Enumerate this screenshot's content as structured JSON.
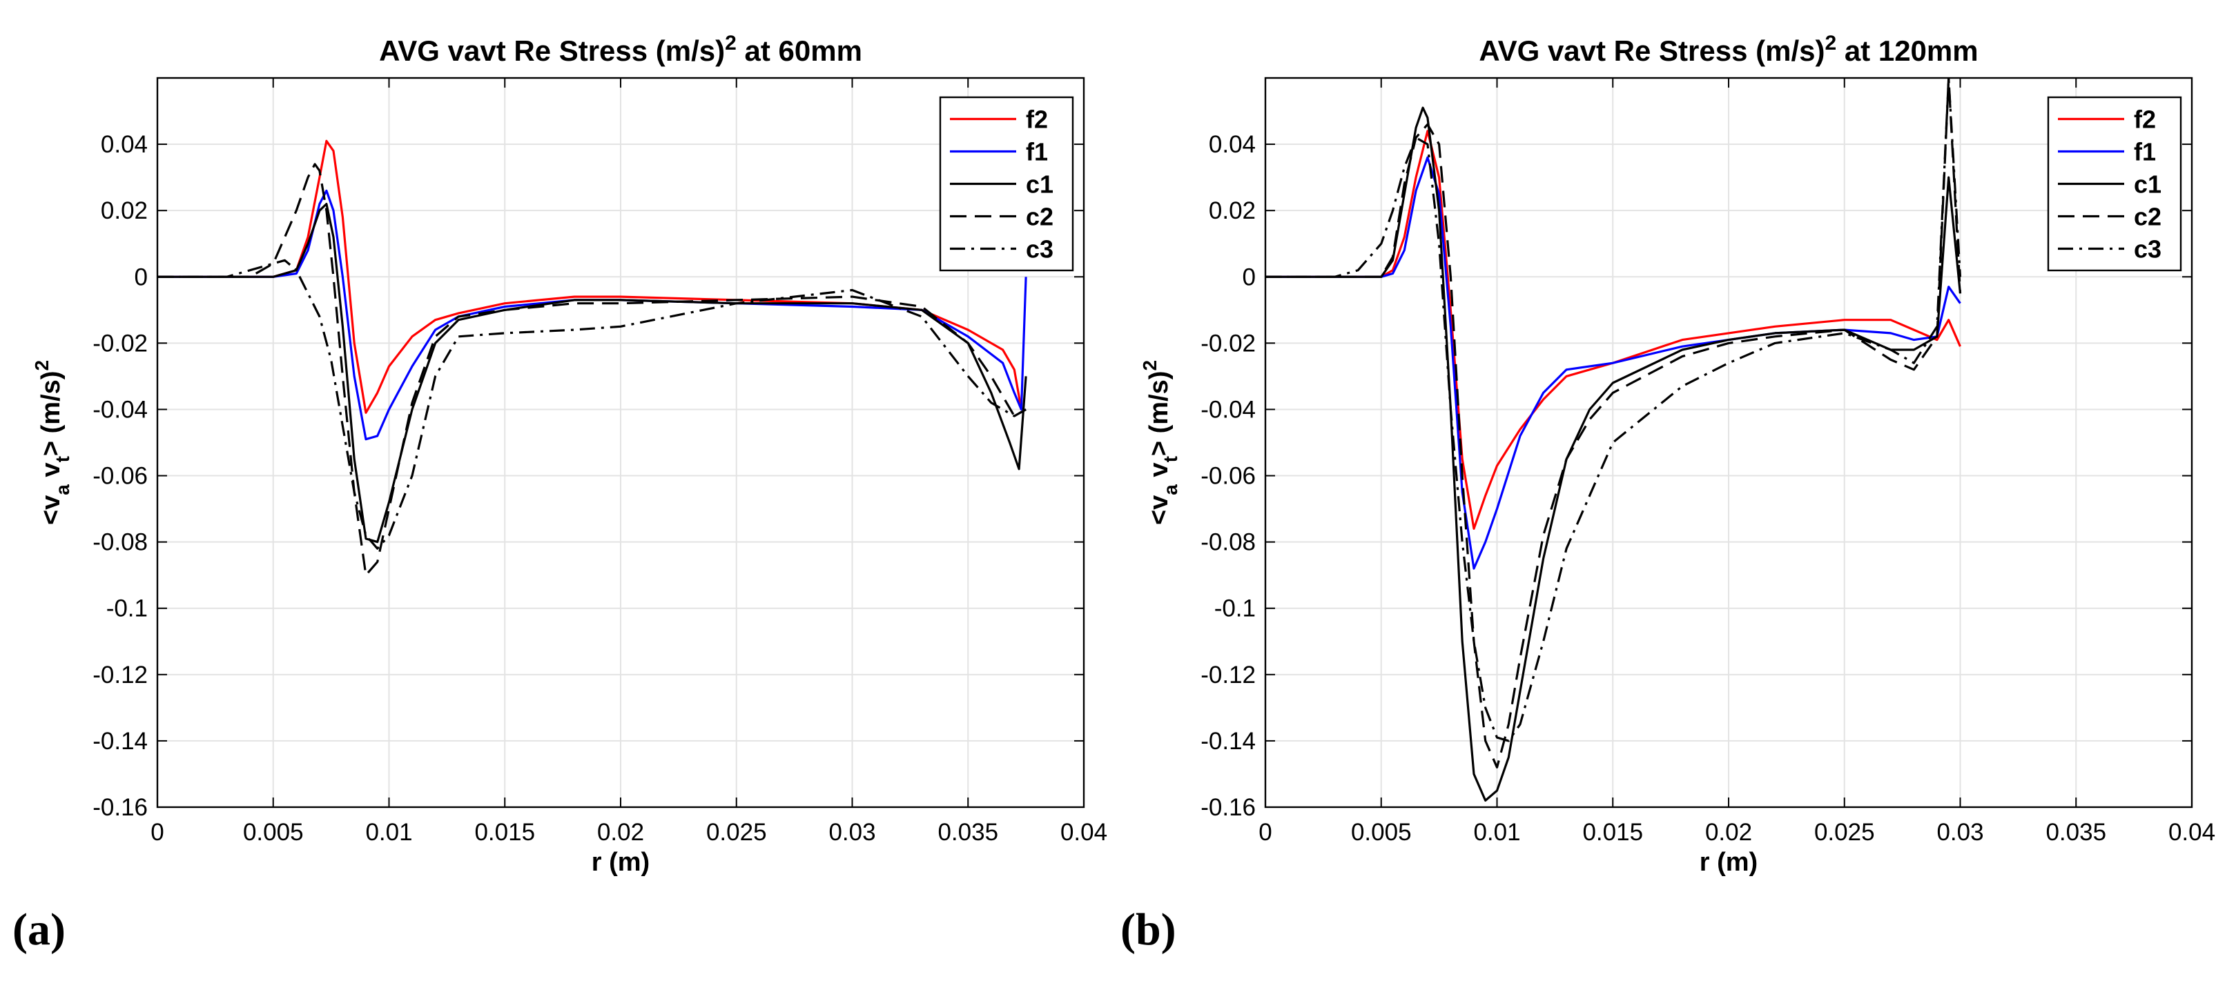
{
  "chart_data": [
    {
      "type": "line",
      "title_main": "AVG vavt Re Stress (m/s)",
      "title_sup": "2",
      "title_tail": " at 60mm",
      "xlabel": "r (m)",
      "ylabel": "<v_a v_t> (m/s)^2",
      "ylabel_parts": {
        "open": "<v",
        "sub1": "a",
        "mid": " v",
        "sub2": "t",
        "close": "> (m/s)",
        "sup": "2"
      },
      "xlim": [
        0,
        0.04
      ],
      "ylim": [
        -0.16,
        0.06
      ],
      "xticks": [
        0,
        0.005,
        0.01,
        0.015,
        0.02,
        0.025,
        0.03,
        0.035,
        0.04
      ],
      "xtick_labels": [
        "0",
        "0.005",
        "0.01",
        "0.015",
        "0.02",
        "0.025",
        "0.03",
        "0.035",
        "0.04"
      ],
      "yticks": [
        0.04,
        0.02,
        0,
        -0.02,
        -0.04,
        -0.06,
        -0.08,
        -0.1,
        -0.12,
        -0.14,
        -0.16
      ],
      "ytick_labels": [
        "0.04",
        "0.02",
        "0",
        "-0.02",
        "-0.04",
        "-0.06",
        "-0.08",
        "-0.1",
        "-0.12",
        "-0.14",
        "-0.16"
      ],
      "grid": true,
      "legend_position": "top-right",
      "subfigure_label": "(a)",
      "series": [
        {
          "name": "f2",
          "color": "#ff0000",
          "dash": "solid",
          "x": [
            0,
            0.005,
            0.006,
            0.0065,
            0.007,
            0.0073,
            0.0076,
            0.008,
            0.0085,
            0.009,
            0.0095,
            0.01,
            0.011,
            0.012,
            0.013,
            0.015,
            0.018,
            0.02,
            0.025,
            0.03,
            0.033,
            0.035,
            0.0365,
            0.037,
            0.0373
          ],
          "y": [
            0,
            0,
            0.002,
            0.012,
            0.03,
            0.041,
            0.038,
            0.018,
            -0.02,
            -0.041,
            -0.035,
            -0.027,
            -0.018,
            -0.013,
            -0.011,
            -0.008,
            -0.006,
            -0.006,
            -0.007,
            -0.008,
            -0.01,
            -0.016,
            -0.022,
            -0.028,
            -0.04
          ]
        },
        {
          "name": "f1",
          "color": "#0000ff",
          "dash": "solid",
          "x": [
            0,
            0.005,
            0.006,
            0.0065,
            0.007,
            0.0073,
            0.0076,
            0.008,
            0.0085,
            0.009,
            0.0095,
            0.01,
            0.011,
            0.012,
            0.013,
            0.015,
            0.018,
            0.02,
            0.025,
            0.03,
            0.033,
            0.035,
            0.0365,
            0.037,
            0.0373,
            0.0375
          ],
          "y": [
            0,
            0,
            0.001,
            0.008,
            0.022,
            0.026,
            0.02,
            0.0,
            -0.03,
            -0.049,
            -0.048,
            -0.04,
            -0.027,
            -0.016,
            -0.012,
            -0.009,
            -0.007,
            -0.007,
            -0.008,
            -0.009,
            -0.01,
            -0.018,
            -0.026,
            -0.035,
            -0.04,
            0.0
          ]
        },
        {
          "name": "c1",
          "color": "#000000",
          "dash": "solid",
          "x": [
            0,
            0.005,
            0.006,
            0.0065,
            0.007,
            0.0073,
            0.0076,
            0.008,
            0.0085,
            0.009,
            0.0095,
            0.01,
            0.011,
            0.012,
            0.013,
            0.015,
            0.018,
            0.02,
            0.025,
            0.03,
            0.033,
            0.035,
            0.036,
            0.0368,
            0.0372,
            0.0375
          ],
          "y": [
            0,
            0,
            0.002,
            0.01,
            0.02,
            0.022,
            0.012,
            -0.015,
            -0.055,
            -0.079,
            -0.08,
            -0.068,
            -0.04,
            -0.02,
            -0.013,
            -0.01,
            -0.007,
            -0.007,
            -0.008,
            -0.008,
            -0.01,
            -0.02,
            -0.035,
            -0.05,
            -0.058,
            -0.03
          ]
        },
        {
          "name": "c2",
          "color": "#000000",
          "dash": "long-dash",
          "x": [
            0,
            0.004,
            0.005,
            0.006,
            0.0065,
            0.0068,
            0.007,
            0.0073,
            0.0076,
            0.008,
            0.0085,
            0.009,
            0.0095,
            0.01,
            0.011,
            0.012,
            0.013,
            0.015,
            0.018,
            0.02,
            0.025,
            0.03,
            0.033,
            0.035,
            0.036,
            0.037,
            0.0375
          ],
          "y": [
            0,
            0,
            0.004,
            0.02,
            0.03,
            0.034,
            0.032,
            0.02,
            0.0,
            -0.03,
            -0.065,
            -0.09,
            -0.086,
            -0.07,
            -0.038,
            -0.018,
            -0.012,
            -0.01,
            -0.008,
            -0.008,
            -0.007,
            -0.006,
            -0.009,
            -0.02,
            -0.03,
            -0.042,
            -0.04
          ]
        },
        {
          "name": "c3",
          "color": "#000000",
          "dash": "dash-dot",
          "x": [
            0,
            0.003,
            0.004,
            0.005,
            0.0055,
            0.006,
            0.0065,
            0.007,
            0.0075,
            0.008,
            0.0085,
            0.009,
            0.0095,
            0.01,
            0.011,
            0.012,
            0.013,
            0.015,
            0.018,
            0.02,
            0.025,
            0.03,
            0.033,
            0.035,
            0.036,
            0.037,
            0.0375
          ],
          "y": [
            0,
            0,
            0.002,
            0.004,
            0.005,
            0.002,
            -0.005,
            -0.012,
            -0.025,
            -0.045,
            -0.065,
            -0.078,
            -0.082,
            -0.078,
            -0.06,
            -0.03,
            -0.018,
            -0.017,
            -0.016,
            -0.015,
            -0.008,
            -0.004,
            -0.012,
            -0.03,
            -0.038,
            -0.042,
            -0.04
          ]
        }
      ]
    },
    {
      "type": "line",
      "title_main": "AVG vavt Re Stress (m/s)",
      "title_sup": "2",
      "title_tail": " at 120mm",
      "xlabel": "r (m)",
      "ylabel": "<v_a v_t> (m/s)^2",
      "ylabel_parts": {
        "open": "<v",
        "sub1": "a",
        "mid": " v",
        "sub2": "t",
        "close": "> (m/s)",
        "sup": "2"
      },
      "xlim": [
        0,
        0.04
      ],
      "ylim": [
        -0.16,
        0.06
      ],
      "xticks": [
        0,
        0.005,
        0.01,
        0.015,
        0.02,
        0.025,
        0.03,
        0.035,
        0.04
      ],
      "xtick_labels": [
        "0",
        "0.005",
        "0.01",
        "0.015",
        "0.02",
        "0.025",
        "0.03",
        "0.035",
        "0.04"
      ],
      "yticks": [
        0.04,
        0.02,
        0,
        -0.02,
        -0.04,
        -0.06,
        -0.08,
        -0.1,
        -0.12,
        -0.14,
        -0.16
      ],
      "ytick_labels": [
        "0.04",
        "0.02",
        "0",
        "-0.02",
        "-0.04",
        "-0.06",
        "-0.08",
        "-0.1",
        "-0.12",
        "-0.14",
        "-0.16"
      ],
      "grid": true,
      "legend_position": "top-right",
      "subfigure_label": "(b)",
      "series": [
        {
          "name": "f2",
          "color": "#ff0000",
          "dash": "solid",
          "x": [
            0,
            0.005,
            0.0055,
            0.006,
            0.0065,
            0.007,
            0.0075,
            0.008,
            0.0085,
            0.009,
            0.0095,
            0.01,
            0.011,
            0.012,
            0.013,
            0.015,
            0.018,
            0.02,
            0.022,
            0.025,
            0.027,
            0.028,
            0.029,
            0.0295,
            0.03
          ],
          "y": [
            0,
            0,
            0.002,
            0.012,
            0.03,
            0.044,
            0.03,
            -0.01,
            -0.055,
            -0.076,
            -0.066,
            -0.057,
            -0.046,
            -0.037,
            -0.03,
            -0.026,
            -0.019,
            -0.017,
            -0.015,
            -0.013,
            -0.013,
            -0.016,
            -0.019,
            -0.013,
            -0.021
          ]
        },
        {
          "name": "f1",
          "color": "#0000ff",
          "dash": "solid",
          "x": [
            0,
            0.005,
            0.0055,
            0.006,
            0.0065,
            0.007,
            0.0075,
            0.008,
            0.0085,
            0.009,
            0.0095,
            0.01,
            0.011,
            0.012,
            0.013,
            0.015,
            0.018,
            0.02,
            0.022,
            0.025,
            0.027,
            0.028,
            0.029,
            0.0295,
            0.03
          ],
          "y": [
            0,
            0,
            0.001,
            0.008,
            0.026,
            0.036,
            0.025,
            -0.015,
            -0.065,
            -0.088,
            -0.08,
            -0.07,
            -0.048,
            -0.035,
            -0.028,
            -0.026,
            -0.021,
            -0.019,
            -0.017,
            -0.016,
            -0.017,
            -0.019,
            -0.018,
            -0.003,
            -0.008
          ]
        },
        {
          "name": "c1",
          "color": "#000000",
          "dash": "solid",
          "x": [
            0,
            0.005,
            0.0055,
            0.006,
            0.0065,
            0.0068,
            0.007,
            0.0075,
            0.008,
            0.0085,
            0.009,
            0.0095,
            0.01,
            0.0105,
            0.011,
            0.012,
            0.013,
            0.014,
            0.015,
            0.018,
            0.02,
            0.022,
            0.025,
            0.027,
            0.028,
            0.029,
            0.0295,
            0.03
          ],
          "y": [
            0,
            0,
            0.005,
            0.025,
            0.045,
            0.051,
            0.048,
            0.02,
            -0.04,
            -0.11,
            -0.15,
            -0.158,
            -0.155,
            -0.145,
            -0.125,
            -0.085,
            -0.055,
            -0.04,
            -0.032,
            -0.022,
            -0.019,
            -0.017,
            -0.016,
            -0.022,
            -0.022,
            -0.018,
            0.03,
            -0.005
          ]
        },
        {
          "name": "c2",
          "color": "#000000",
          "dash": "long-dash",
          "x": [
            0,
            0.005,
            0.0055,
            0.006,
            0.0065,
            0.007,
            0.0075,
            0.008,
            0.0085,
            0.009,
            0.0095,
            0.01,
            0.0105,
            0.011,
            0.012,
            0.013,
            0.014,
            0.015,
            0.018,
            0.02,
            0.022,
            0.025,
            0.027,
            0.028,
            0.029,
            0.0295,
            0.03
          ],
          "y": [
            0,
            0,
            0.006,
            0.028,
            0.042,
            0.046,
            0.04,
            0.0,
            -0.06,
            -0.11,
            -0.14,
            -0.148,
            -0.135,
            -0.115,
            -0.078,
            -0.055,
            -0.043,
            -0.035,
            -0.024,
            -0.02,
            -0.018,
            -0.016,
            -0.025,
            -0.028,
            -0.018,
            0.06,
            -0.005
          ]
        },
        {
          "name": "c3",
          "color": "#000000",
          "dash": "dash-dot",
          "x": [
            0,
            0.003,
            0.004,
            0.005,
            0.0055,
            0.006,
            0.0065,
            0.007,
            0.0075,
            0.008,
            0.0085,
            0.009,
            0.0095,
            0.01,
            0.0105,
            0.011,
            0.012,
            0.013,
            0.015,
            0.018,
            0.02,
            0.022,
            0.025,
            0.027,
            0.028,
            0.029,
            0.0295,
            0.03
          ],
          "y": [
            0,
            0,
            0.002,
            0.01,
            0.02,
            0.033,
            0.042,
            0.04,
            0.01,
            -0.04,
            -0.08,
            -0.11,
            -0.13,
            -0.139,
            -0.14,
            -0.135,
            -0.11,
            -0.082,
            -0.05,
            -0.033,
            -0.026,
            -0.02,
            -0.017,
            -0.022,
            -0.026,
            -0.015,
            0.06,
            0.0
          ]
        }
      ]
    }
  ]
}
